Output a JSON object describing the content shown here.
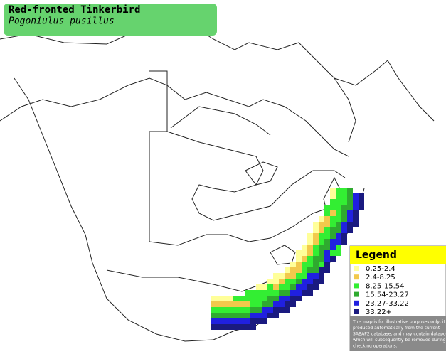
{
  "header": {
    "title": "Red-fronted Tinkerbird",
    "subtitle": "Pogoniulus pusillus"
  },
  "legend": {
    "title": "Legend",
    "items": [
      {
        "label": "0.25-2.4",
        "color": "#ffff99"
      },
      {
        "label": "2.4-8.25",
        "color": "#f2c94c"
      },
      {
        "label": "8.25-15.54",
        "color": "#33ee33"
      },
      {
        "label": "15.54-23.27",
        "color": "#2faa2f"
      },
      {
        "label": "23.27-33.22",
        "color": "#2020e0"
      },
      {
        "label": "33.22+",
        "color": "#1a1a80"
      }
    ],
    "disclaimer": [
      "This map is for illustrative purposes only; it is",
      "produced automatically from the current",
      "SABAP2 database, and may contain datapoints",
      "which will subsequently be removed during",
      "checking operations."
    ]
  }
}
